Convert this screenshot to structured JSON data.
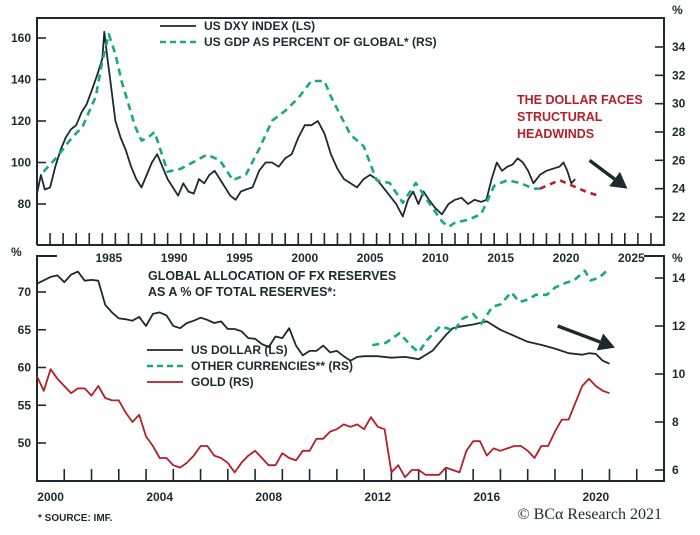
{
  "chart_data": [
    {
      "type": "line",
      "panel": "top",
      "title": "",
      "legend": [
        {
          "name": "US DXY INDEX (LS)",
          "style": "solid",
          "color": "#1c2a2e"
        },
        {
          "name": "US GDP AS PERCENT OF GLOBAL* (RS)",
          "style": "dashed",
          "color": "#1aa97a"
        }
      ],
      "legend_placement": "top-center",
      "annotation": {
        "lines": [
          "THE DOLLAR FACES",
          "STRUCTURAL",
          "HEADWINDS"
        ],
        "color": "#b3202a",
        "placement": "right"
      },
      "arrow": {
        "from": [
          2022.3,
          26.0
        ],
        "to": [
          2025.2,
          24.0
        ],
        "axis": "right",
        "color": "#1c2a2e"
      },
      "xlim": [
        1980,
        2028
      ],
      "x_ticks": [
        1985,
        1990,
        1995,
        2000,
        2005,
        2010,
        2015,
        2020,
        2025
      ],
      "y_left": {
        "label": "",
        "lim": [
          60,
          170
        ],
        "ticks": [
          80,
          100,
          120,
          140,
          160
        ]
      },
      "y_right": {
        "label": "%",
        "lim": [
          20,
          36
        ],
        "ticks": [
          22,
          24,
          26,
          28,
          30,
          32,
          34
        ]
      },
      "series": [
        {
          "name": "US DXY INDEX (LS)",
          "axis": "left",
          "color": "#1c2a2e",
          "style": "solid",
          "x": [
            1980.0,
            1980.3,
            1980.6,
            1981.0,
            1981.4,
            1981.8,
            1982.2,
            1982.6,
            1983.0,
            1983.4,
            1983.8,
            1984.2,
            1984.6,
            1985.0,
            1985.15,
            1985.4,
            1985.7,
            1986.0,
            1986.4,
            1986.8,
            1987.2,
            1987.6,
            1988.0,
            1988.4,
            1988.8,
            1989.2,
            1989.6,
            1990.0,
            1990.4,
            1990.8,
            1991.2,
            1991.6,
            1992.0,
            1992.4,
            1992.8,
            1993.2,
            1993.6,
            1994.0,
            1994.4,
            1994.8,
            1995.2,
            1995.6,
            1996.0,
            1996.5,
            1997.0,
            1997.5,
            1998.0,
            1998.5,
            1999.0,
            1999.5,
            2000.0,
            2000.5,
            2001.0,
            2001.5,
            2002.0,
            2002.5,
            2003.0,
            2003.5,
            2004.0,
            2004.5,
            2005.0,
            2005.5,
            2006.0,
            2006.5,
            2007.0,
            2007.5,
            2008.0,
            2008.4,
            2008.8,
            2009.2,
            2009.6,
            2010.0,
            2010.5,
            2011.0,
            2011.5,
            2012.0,
            2012.5,
            2013.0,
            2013.5,
            2014.0,
            2014.4,
            2014.8,
            2015.2,
            2015.6,
            2016.0,
            2016.4,
            2016.8,
            2017.2,
            2017.6,
            2018.0,
            2018.5,
            2019.0,
            2019.5,
            2020.0,
            2020.3,
            2020.6,
            2020.9,
            2021.2
          ],
          "y": [
            85,
            94,
            87,
            88,
            98,
            106,
            112,
            116,
            118,
            124,
            128,
            135,
            142,
            150,
            163,
            150,
            135,
            120,
            112,
            106,
            98,
            92,
            88,
            94,
            100,
            104,
            98,
            92,
            88,
            84,
            90,
            86,
            85,
            92,
            90,
            94,
            96,
            92,
            88,
            84,
            82,
            86,
            87,
            88,
            96,
            100,
            100,
            98,
            102,
            104,
            112,
            118,
            118,
            120,
            114,
            104,
            97,
            92,
            90,
            88,
            92,
            94,
            92,
            88,
            84,
            80,
            74,
            82,
            86,
            80,
            86,
            82,
            78,
            75,
            80,
            82,
            83,
            80,
            82,
            81,
            82,
            92,
            100,
            96,
            98,
            99,
            102,
            100,
            96,
            90,
            94,
            96,
            97,
            98,
            100,
            96,
            90,
            92
          ]
        },
        {
          "name": "US GDP AS PERCENT OF GLOBAL* (RS)",
          "axis": "right",
          "color": "#1aa97a",
          "style": "dashed",
          "x": [
            1980.5,
            1981.5,
            1982.5,
            1983.5,
            1984.5,
            1985.0,
            1985.5,
            1986.0,
            1986.5,
            1987.0,
            1987.5,
            1988.0,
            1988.5,
            1989.0,
            1989.5,
            1990.0,
            1991.0,
            1992.0,
            1993.0,
            1994.0,
            1995.0,
            1996.0,
            1997.0,
            1998.0,
            1999.0,
            2000.0,
            2001.0,
            2002.0,
            2002.5,
            2003.0,
            2004.0,
            2005.0,
            2006.0,
            2007.0,
            2008.0,
            2009.0,
            2010.0,
            2011.0,
            2011.5,
            2012.0,
            2013.0,
            2014.0,
            2015.0,
            2016.0,
            2017.0,
            2018.0,
            2018.5
          ],
          "y": [
            25.2,
            26.2,
            27.4,
            28.4,
            30.5,
            33.0,
            34.9,
            33.5,
            31.5,
            30.0,
            28.4,
            27.4,
            27.6,
            28.0,
            26.6,
            25.2,
            25.4,
            25.9,
            26.4,
            26.0,
            24.6,
            25.0,
            26.8,
            28.8,
            29.5,
            30.4,
            31.6,
            31.6,
            30.5,
            29.6,
            27.8,
            27.0,
            24.6,
            24.4,
            23.0,
            24.4,
            23.0,
            21.7,
            21.3,
            21.6,
            21.8,
            22.2,
            24.2,
            24.6,
            24.4,
            24.0,
            24.0
          ]
        },
        {
          "name": "US GDP AS PERCENT OF GLOBAL* (RS) - projection",
          "axis": "right",
          "color": "#b3202a",
          "style": "dashed",
          "x": [
            2018.5,
            2020.0,
            2021.0,
            2022.0,
            2023.0
          ],
          "y": [
            24.0,
            24.6,
            24.2,
            23.8,
            23.5
          ]
        }
      ]
    },
    {
      "type": "line",
      "panel": "bottom",
      "title": "GLOBAL ALLOCATION OF FX RESERVES AS A % OF TOTAL RESERVES*:",
      "title_lines": [
        "GLOBAL ALLOCATION OF FX RESERVES",
        "AS A % OF TOTAL RESERVES*:"
      ],
      "legend": [
        {
          "name": "US DOLLAR (LS)",
          "style": "solid",
          "color": "#1c2a2e"
        },
        {
          "name": "OTHER CURRENCIES** (RS)",
          "style": "dashed",
          "color": "#1aa97a"
        },
        {
          "name": "GOLD (RS)",
          "style": "solid",
          "color": "#b3202a"
        }
      ],
      "legend_placement": "center-left",
      "arrow": {
        "from": [
          2019.1,
          12.0
        ],
        "to": [
          2021.2,
          11.1
        ],
        "axis": "right",
        "color": "#1c2a2e"
      },
      "xlim": [
        2000,
        2023
      ],
      "x_ticks": [
        2000,
        2004,
        2008,
        2012,
        2016,
        2020
      ],
      "y_left": {
        "label": "%",
        "lim": [
          45,
          74
        ],
        "ticks": [
          50,
          55,
          60,
          65,
          70
        ]
      },
      "y_right": {
        "label": "%",
        "lim": [
          5.4,
          14.8
        ],
        "ticks": [
          6,
          8,
          10,
          12,
          14
        ]
      },
      "series": [
        {
          "name": "US DOLLAR (LS)",
          "axis": "left",
          "color": "#1c2a2e",
          "style": "solid",
          "x": [
            2000.0,
            2000.5,
            2000.75,
            2001.0,
            2001.25,
            2001.5,
            2001.75,
            2002.0,
            2002.25,
            2002.5,
            2002.75,
            2003.0,
            2003.25,
            2003.5,
            2003.75,
            2004.0,
            2004.25,
            2004.5,
            2004.75,
            2005.0,
            2005.25,
            2005.5,
            2005.75,
            2006.0,
            2006.25,
            2006.5,
            2006.75,
            2007.0,
            2007.25,
            2007.5,
            2007.75,
            2008.0,
            2008.25,
            2008.5,
            2008.75,
            2009.0,
            2009.25,
            2009.5,
            2009.75,
            2010.0,
            2010.25,
            2010.5,
            2010.75,
            2011.0,
            2011.25,
            2011.5,
            2011.75,
            2012.0,
            2012.5,
            2013.0,
            2013.5,
            2014.0,
            2014.5,
            2015.0,
            2015.25,
            2015.5,
            2016.0,
            2016.5,
            2017.0,
            2017.5,
            2018.0,
            2018.5,
            2019.0,
            2019.5,
            2020.0,
            2020.25,
            2020.5,
            2020.75,
            2021.0
          ],
          "y": [
            71.1,
            72.0,
            72.2,
            71.3,
            72.3,
            72.7,
            71.5,
            71.6,
            71.5,
            68.3,
            67.3,
            66.5,
            66.4,
            66.2,
            66.7,
            65.5,
            67.1,
            67.3,
            66.9,
            65.5,
            65.2,
            65.9,
            66.2,
            66.6,
            66.3,
            65.9,
            66.1,
            65.1,
            65.1,
            64.8,
            63.9,
            63.8,
            63.1,
            62.7,
            64.1,
            63.9,
            65.2,
            62.9,
            61.6,
            62.2,
            62.2,
            62.9,
            62.0,
            62.2,
            61.5,
            60.9,
            61.4,
            61.5,
            61.5,
            61.3,
            61.4,
            61.1,
            62.2,
            64.3,
            65.2,
            65.4,
            65.7,
            66.1,
            65.0,
            64.2,
            63.4,
            63.0,
            62.5,
            61.9,
            61.7,
            61.9,
            61.8,
            60.9,
            60.5
          ]
        },
        {
          "name": "OTHER CURRENCIES** (RS)",
          "axis": "right",
          "color": "#1aa97a",
          "style": "dashed",
          "x": [
            2012.3,
            2012.8,
            2013.3,
            2013.7,
            2014.0,
            2014.3,
            2014.8,
            2015.3,
            2015.6,
            2016.0,
            2016.3,
            2016.7,
            2017.0,
            2017.4,
            2017.7,
            2018.0,
            2018.3,
            2018.7,
            2019.0,
            2019.4,
            2019.7,
            2020.1,
            2020.3,
            2020.6,
            2021.0
          ],
          "y": [
            11.2,
            11.3,
            11.7,
            11.2,
            10.9,
            11.4,
            12.0,
            11.8,
            12.3,
            12.5,
            12.1,
            12.8,
            12.9,
            13.4,
            13.0,
            13.1,
            13.3,
            13.3,
            13.6,
            13.8,
            13.9,
            14.3,
            13.9,
            14.0,
            14.4
          ]
        },
        {
          "name": "GOLD (RS)",
          "axis": "right",
          "color": "#b3202a",
          "style": "solid",
          "x": [
            2000.0,
            2000.25,
            2000.5,
            2000.75,
            2001.0,
            2001.25,
            2001.5,
            2001.75,
            2002.0,
            2002.25,
            2002.5,
            2002.75,
            2003.0,
            2003.25,
            2003.5,
            2003.75,
            2004.0,
            2004.25,
            2004.5,
            2004.75,
            2005.0,
            2005.25,
            2005.5,
            2005.75,
            2006.0,
            2006.25,
            2006.5,
            2006.75,
            2007.0,
            2007.25,
            2007.5,
            2007.75,
            2008.0,
            2008.25,
            2008.5,
            2008.75,
            2009.0,
            2009.25,
            2009.5,
            2009.75,
            2010.0,
            2010.25,
            2010.5,
            2010.75,
            2011.0,
            2011.25,
            2011.5,
            2011.75,
            2012.0,
            2012.25,
            2012.5,
            2012.75,
            2013.0,
            2013.25,
            2013.5,
            2013.75,
            2014.0,
            2014.25,
            2014.5,
            2014.75,
            2015.0,
            2015.25,
            2015.5,
            2015.75,
            2016.0,
            2016.25,
            2016.5,
            2016.75,
            2017.0,
            2017.25,
            2017.5,
            2017.75,
            2018.0,
            2018.25,
            2018.5,
            2018.75,
            2019.0,
            2019.25,
            2019.5,
            2019.75,
            2020.0,
            2020.25,
            2020.5,
            2020.75,
            2021.0
          ],
          "y": [
            9.9,
            9.3,
            10.2,
            9.8,
            9.5,
            9.2,
            9.4,
            9.4,
            9.1,
            9.5,
            9.0,
            8.9,
            8.9,
            8.4,
            8.0,
            8.3,
            7.4,
            7.0,
            6.5,
            6.5,
            6.2,
            6.1,
            6.3,
            6.6,
            7.0,
            7.0,
            6.6,
            6.5,
            6.3,
            5.9,
            6.3,
            6.6,
            6.8,
            6.5,
            6.2,
            6.2,
            6.7,
            6.5,
            6.4,
            6.8,
            6.8,
            7.3,
            7.3,
            7.6,
            7.7,
            7.9,
            7.8,
            7.9,
            7.7,
            8.2,
            7.8,
            7.7,
            5.9,
            6.2,
            5.7,
            6.0,
            6.0,
            5.8,
            5.8,
            5.8,
            6.1,
            6.0,
            5.9,
            6.8,
            7.2,
            7.2,
            6.6,
            6.9,
            6.8,
            6.9,
            7.0,
            7.0,
            6.8,
            6.5,
            7.0,
            7.0,
            7.6,
            8.1,
            8.1,
            8.8,
            9.5,
            9.8,
            9.5,
            9.3,
            9.2
          ]
        }
      ]
    }
  ],
  "footer": {
    "source": "* SOURCE: IMF.",
    "copyright": "© BCα Research 2021"
  }
}
